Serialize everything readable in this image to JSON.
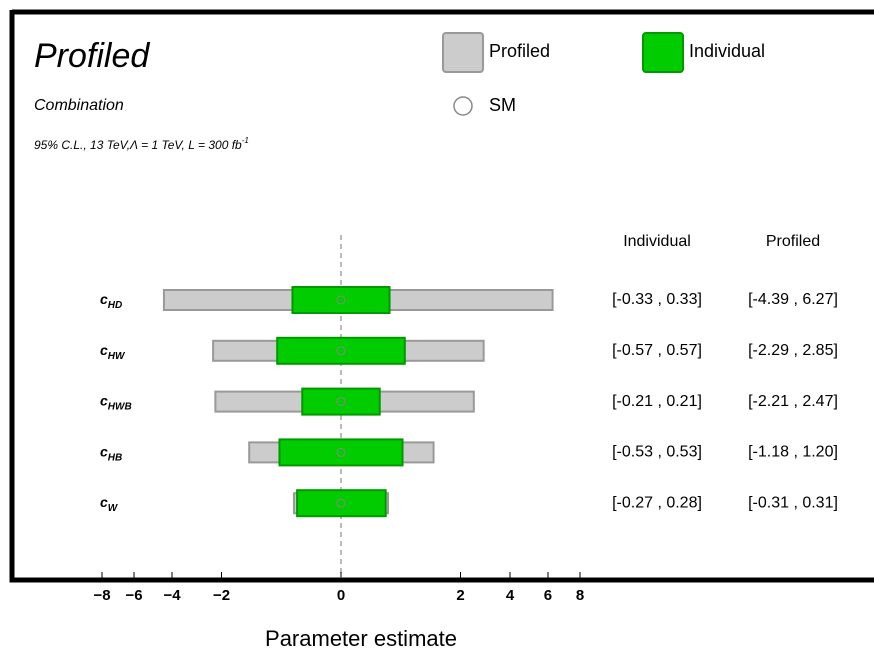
{
  "chart_data": {
    "type": "interval",
    "title": "Profiled",
    "subtitle": "Combination",
    "note": "95% C.L., 13 TeV,Λ = 1 TeV, L = 300 fb",
    "note_sup": "-1",
    "xlabel": "Parameter estimate",
    "x_scale": "sqrt",
    "xlim": [
      -8,
      8
    ],
    "xticks": [
      {
        "value": -8,
        "label": "−8"
      },
      {
        "value": -6,
        "label": "−6"
      },
      {
        "value": -4,
        "label": "−4"
      },
      {
        "value": -2,
        "label": "−2"
      },
      0,
      2,
      4,
      6,
      8
    ],
    "categories": [
      {
        "symbol": "c",
        "subscript": "HD"
      },
      {
        "symbol": "c",
        "subscript": "HW"
      },
      {
        "symbol": "c",
        "subscript": "HWB"
      },
      {
        "symbol": "c",
        "subscript": "HB"
      },
      {
        "symbol": "c",
        "subscript": "W"
      }
    ],
    "series": [
      {
        "name": "Profiled",
        "color": "#cccccc",
        "edge": "#999999",
        "low": [
          -4.39,
          -2.29,
          -2.21,
          -1.18,
          -0.31
        ],
        "high": [
          6.27,
          2.85,
          2.47,
          1.2,
          0.31
        ],
        "value_labels": [
          "[-4.39 , 6.27]",
          "[-2.29 , 2.85]",
          "[-2.21 , 2.47]",
          "[-1.18 , 1.20]",
          "[-0.31 , 0.31]"
        ]
      },
      {
        "name": "Individual",
        "color": "#00cc00",
        "edge": "#009900",
        "low": [
          -0.33,
          -0.57,
          -0.21,
          -0.53,
          -0.27
        ],
        "high": [
          0.33,
          0.57,
          0.21,
          0.53,
          0.28
        ],
        "value_labels": [
          "[-0.33 , 0.33]",
          "[-0.57 , 0.57]",
          "[-0.21 , 0.21]",
          "[-0.53 , 0.53]",
          "[-0.27 , 0.28]"
        ]
      }
    ],
    "sm": {
      "name": "SM",
      "values": [
        0,
        0,
        0,
        0,
        0
      ]
    }
  }
}
